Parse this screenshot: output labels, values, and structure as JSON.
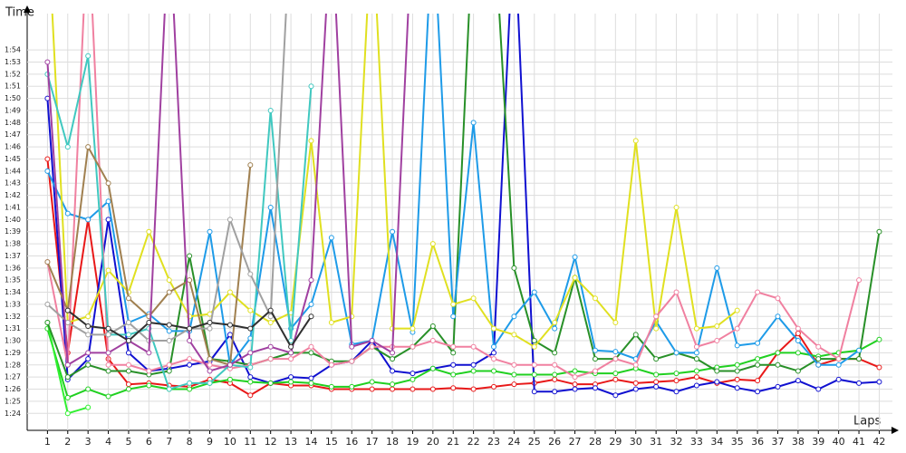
{
  "chart_data": {
    "type": "line",
    "y_label": "Time",
    "x_label": "Laps",
    "x": [
      1,
      2,
      3,
      4,
      5,
      6,
      7,
      8,
      9,
      10,
      11,
      12,
      13,
      14,
      15,
      16,
      17,
      18,
      19,
      20,
      21,
      22,
      23,
      24,
      25,
      26,
      27,
      28,
      29,
      30,
      31,
      32,
      33,
      34,
      35,
      36,
      37,
      38,
      39,
      40,
      41,
      42
    ],
    "xlim": [
      0,
      42.65
    ],
    "xticks": [
      1,
      2,
      3,
      4,
      5,
      6,
      7,
      8,
      9,
      10,
      11,
      12,
      13,
      14,
      15,
      16,
      17,
      18,
      19,
      20,
      21,
      22,
      23,
      24,
      25,
      26,
      27,
      28,
      29,
      30,
      31,
      32,
      33,
      34,
      35,
      36,
      37,
      38,
      39,
      40,
      41,
      42
    ],
    "ylim": [
      82.6,
      117
    ],
    "yticks": [
      {
        "value": 84,
        "label": "1:24"
      },
      {
        "value": 85,
        "label": "1:25"
      },
      {
        "value": 86,
        "label": "1:26"
      },
      {
        "value": 87,
        "label": "1:27"
      },
      {
        "value": 88,
        "label": "1:28"
      },
      {
        "value": 89,
        "label": "1:29"
      },
      {
        "value": 90,
        "label": "1:30"
      },
      {
        "value": 91,
        "label": "1:31"
      },
      {
        "value": 92,
        "label": "1:32"
      },
      {
        "value": 93,
        "label": "1:33"
      },
      {
        "value": 94,
        "label": "1:34"
      },
      {
        "value": 95,
        "label": "1:35"
      },
      {
        "value": 96,
        "label": "1:36"
      },
      {
        "value": 97,
        "label": "1:37"
      },
      {
        "value": 98,
        "label": "1:38"
      },
      {
        "value": 99,
        "label": "1:39"
      },
      {
        "value": 100,
        "label": "1:40"
      },
      {
        "value": 101,
        "label": "1:41"
      },
      {
        "value": 102,
        "label": "1:42"
      },
      {
        "value": 103,
        "label": "1:43"
      },
      {
        "value": 104,
        "label": "1:44"
      },
      {
        "value": 105,
        "label": "1:45"
      },
      {
        "value": 106,
        "label": "1:46"
      },
      {
        "value": 107,
        "label": "1:47"
      },
      {
        "value": 108,
        "label": "1:48"
      },
      {
        "value": 109,
        "label": "1:49"
      },
      {
        "value": 110,
        "label": "1:50"
      },
      {
        "value": 111,
        "label": "1:51"
      },
      {
        "value": 112,
        "label": "1:52"
      },
      {
        "value": 113,
        "label": "1:53"
      },
      {
        "value": 114,
        "label": "1:54"
      }
    ],
    "grid": true,
    "series": [
      {
        "color": "#e81818",
        "values": [
          105,
          89,
          100,
          88.5,
          86.4,
          86.5,
          86.3,
          86.2,
          86.8,
          86.5,
          85.5,
          86.5,
          86.3,
          86.3,
          86,
          86,
          86,
          86,
          86,
          86,
          86.1,
          86,
          86.2,
          86.4,
          86.5,
          86.8,
          86.4,
          86.4,
          86.8,
          86.5,
          86.6,
          86.7,
          87,
          86.5,
          86.8,
          86.7,
          89,
          90.6,
          88,
          88.5,
          88.5,
          87.8
        ]
      },
      {
        "color": "#1010d0",
        "values": [
          110,
          86.8,
          88.5,
          100,
          89,
          87.5,
          87.7,
          88,
          88.3,
          90.5,
          87,
          86.5,
          87,
          86.9,
          88,
          88.3,
          90,
          87.5,
          87.3,
          87.7,
          88,
          88,
          89,
          125,
          85.8,
          85.8,
          86,
          86.1,
          85.5,
          86,
          86.2,
          85.8,
          86.3,
          86.6,
          86.1,
          85.8,
          86.2,
          86.7,
          86,
          86.8,
          86.5,
          86.6
        ]
      },
      {
        "color": "#20d020",
        "values": [
          91,
          85.3,
          86,
          85.4,
          86,
          86.3,
          86,
          86,
          86.5,
          86.8,
          86.6,
          86.5,
          86.6,
          86.5,
          86.2,
          86.2,
          86.6,
          86.4,
          86.8,
          87.7,
          87.2,
          87.5,
          87.5,
          87.2,
          87.2,
          87.2,
          87.5,
          87.3,
          87.3,
          87.7,
          87.2,
          87.3,
          87.5,
          87.8,
          88,
          88.5,
          89,
          89,
          88.7,
          89,
          89.2,
          90.1
        ]
      },
      {
        "color": "#30f030",
        "values": [
          91.5,
          84,
          84.5,
          null,
          null,
          null,
          null,
          null,
          null,
          null,
          null,
          null,
          null,
          null,
          null,
          null,
          null,
          null,
          null,
          null,
          null,
          null,
          null,
          null,
          null,
          null,
          null,
          null,
          null,
          null,
          null,
          null,
          null,
          null,
          null,
          null,
          null,
          null,
          null,
          null,
          null,
          null
        ]
      },
      {
        "color": "#289028",
        "values": [
          91.5,
          87,
          88,
          87.5,
          87.5,
          87.2,
          87.5,
          97,
          88.5,
          88.3,
          88,
          88.5,
          89,
          89,
          88.3,
          88.3,
          89.5,
          88.5,
          89.5,
          91.2,
          89,
          125,
          125,
          96,
          90,
          89,
          95.2,
          88.5,
          88.5,
          90.5,
          88.5,
          89,
          88.5,
          87.5,
          87.5,
          88,
          88,
          87.5,
          88.5,
          88.5,
          88.5,
          99
        ]
      },
      {
        "color": "#1e9be8",
        "values": [
          104,
          100.5,
          100,
          101.5,
          91.5,
          92.2,
          90.8,
          90.8,
          99,
          88,
          90.2,
          101,
          91,
          93,
          98.5,
          89.7,
          90,
          99,
          90.7,
          125,
          92,
          108,
          89.5,
          92,
          94,
          91,
          96.9,
          89.2,
          89.1,
          88.5,
          91.6,
          89,
          89,
          96,
          89.6,
          89.8,
          92,
          90,
          88,
          88,
          89.2,
          null
        ]
      },
      {
        "color": "#e0e020",
        "values": [
          125,
          91.5,
          92,
          95.8,
          94,
          99,
          95,
          92,
          92.2,
          94,
          92.5,
          91.5,
          92.3,
          106.5,
          91.5,
          92,
          125,
          91,
          91,
          98,
          93,
          93.5,
          91,
          90.5,
          89.5,
          91.5,
          95.2,
          93.5,
          91.5,
          106.5,
          91,
          101,
          91,
          91.2,
          92.5,
          null,
          null,
          null,
          null,
          null,
          null,
          null
        ]
      },
      {
        "color": "#f080a0",
        "values": [
          96.5,
          88,
          125,
          88,
          88,
          87.5,
          88,
          88.5,
          88,
          87.7,
          88,
          88.5,
          88.5,
          89.5,
          88,
          88.3,
          89.5,
          89.5,
          89.5,
          90,
          89.5,
          89.5,
          88.5,
          88,
          88,
          88,
          87,
          87.5,
          88.5,
          88,
          92,
          94,
          89.5,
          90,
          91,
          94,
          93.5,
          91,
          89.5,
          88.5,
          95,
          null
        ]
      },
      {
        "color": "#40c8c0",
        "values": [
          112,
          106,
          113.5,
          90.5,
          90.5,
          91,
          86,
          86.5,
          86.5,
          88,
          87.8,
          109,
          90,
          111,
          null,
          null,
          null,
          null,
          null,
          null,
          null,
          null,
          null,
          null,
          null,
          null,
          null,
          null,
          null,
          null,
          null,
          null,
          null,
          null,
          null,
          null,
          null,
          null,
          null,
          null,
          null,
          null
        ]
      },
      {
        "color": "#a08050",
        "values": [
          96.5,
          92.5,
          106,
          103,
          93.5,
          92,
          94,
          95,
          88.5,
          88,
          104.5,
          null,
          null,
          null,
          null,
          null,
          null,
          null,
          null,
          null,
          null,
          null,
          null,
          null,
          null,
          null,
          null,
          null,
          null,
          null,
          null,
          null,
          null,
          null,
          null,
          null,
          null,
          null,
          null,
          null,
          null,
          null
        ]
      },
      {
        "color": "#a0a0a0",
        "values": [
          93,
          91.5,
          90.5,
          90.5,
          91.5,
          90,
          90,
          91,
          91,
          100,
          95.5,
          92,
          125,
          null,
          null,
          null,
          null,
          null,
          null,
          null,
          null,
          null,
          null,
          null,
          null,
          null,
          null,
          null,
          null,
          null,
          null,
          null,
          null,
          null,
          null,
          null,
          null,
          null,
          null,
          null,
          null,
          null
        ]
      },
      {
        "color": "#a040a0",
        "values": [
          113,
          88,
          89,
          89,
          90,
          89,
          125,
          90,
          87.5,
          88,
          89,
          89.5,
          89,
          95,
          125,
          89.5,
          90,
          89,
          125,
          null,
          null,
          null,
          null,
          null,
          null,
          null,
          null,
          null,
          null,
          null,
          null,
          null,
          null,
          null,
          null,
          null,
          null,
          null,
          null,
          null,
          null,
          null
        ]
      },
      {
        "color": "#303030",
        "values": [
          null,
          92.5,
          91.2,
          91,
          90,
          91.5,
          91.3,
          91,
          91.5,
          91.3,
          91,
          92.5,
          89.5,
          92,
          null,
          null,
          null,
          null,
          null,
          null,
          null,
          null,
          null,
          null,
          null,
          null,
          null,
          null,
          null,
          null,
          null,
          null,
          null,
          null,
          null,
          null,
          null,
          null,
          null,
          null,
          null,
          null
        ]
      }
    ]
  }
}
